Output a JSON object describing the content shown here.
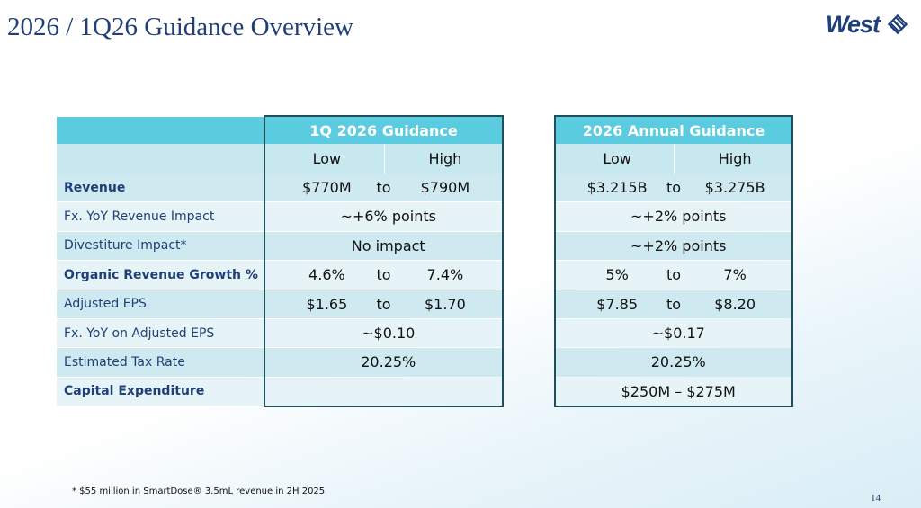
{
  "header": {
    "title": "2026 / 1Q26 Guidance Overview",
    "logo": "West"
  },
  "table": {
    "groups": [
      "1Q 2026 Guidance",
      "2026 Annual Guidance"
    ],
    "subheaders": [
      [
        "Low",
        "High"
      ],
      [
        "Low",
        "High"
      ]
    ],
    "rows": [
      {
        "label": "Revenue",
        "bold": true,
        "q1": [
          "$770M",
          "to",
          "$790M"
        ],
        "annual": [
          "$3.215B",
          "to",
          "$3.275B"
        ]
      },
      {
        "label": "Fx. YoY Revenue Impact",
        "bold": false,
        "q1": [
          "~+6% points"
        ],
        "annual": [
          "~+2% points"
        ]
      },
      {
        "label": "Divestiture Impact*",
        "bold": false,
        "q1": [
          "No impact"
        ],
        "annual": [
          "~+2% points"
        ]
      },
      {
        "label": "Organic Revenue Growth %",
        "bold": true,
        "q1": [
          "4.6%",
          "to",
          "7.4%"
        ],
        "annual": [
          "5%",
          "to",
          "7%"
        ]
      },
      {
        "label": "Adjusted EPS",
        "bold": false,
        "q1": [
          "$1.65",
          "to",
          "$1.70"
        ],
        "annual": [
          "$7.85",
          "to",
          "$8.20"
        ]
      },
      {
        "label": "Fx. YoY on Adjusted EPS",
        "bold": false,
        "q1": [
          "~$0.10"
        ],
        "annual": [
          "~$0.17"
        ]
      },
      {
        "label": "Estimated Tax Rate",
        "bold": false,
        "q1": [
          "20.25%"
        ],
        "annual": [
          "20.25%"
        ]
      },
      {
        "label": "Capital Expenditure",
        "bold": true,
        "q1": [],
        "annual": [
          "$250M – $275M"
        ]
      }
    ]
  },
  "footnote": "* $55 million in SmartDose® 3.5mL revenue in 2H 2025",
  "page_number": "14"
}
